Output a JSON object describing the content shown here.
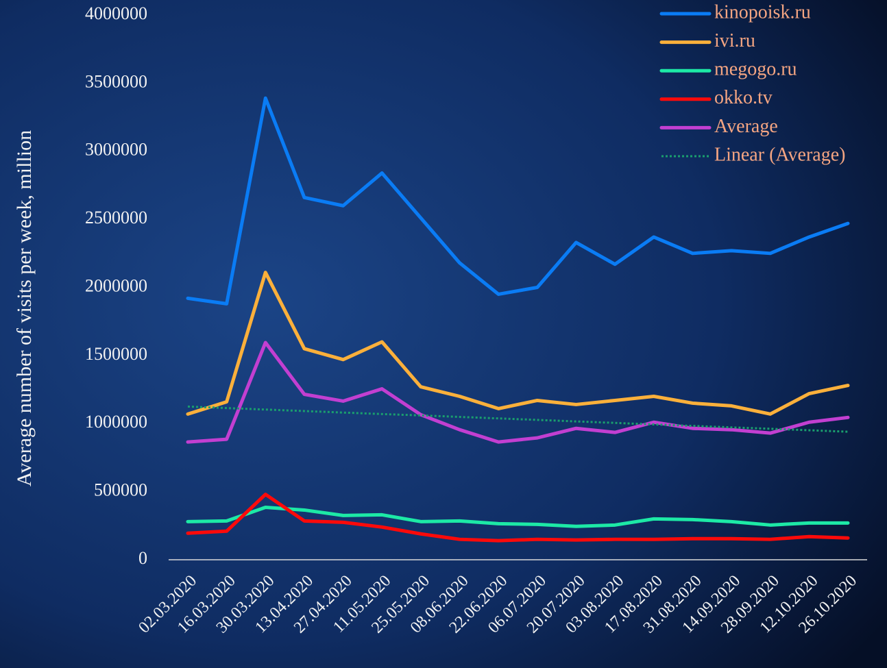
{
  "chart_data": {
    "type": "line",
    "y_label": "Average number of visits per week, million",
    "categories": [
      "02.03.2020",
      "16.03.2020",
      "30.03.2020",
      "13.04.2020",
      "27.04.2020",
      "11.05.2020",
      "25.05.2020",
      "08.06.2020",
      "22.06.2020",
      "06.07.2020",
      "20.07.2020",
      "03.08.2020",
      "17.08.2020",
      "31.08.2020",
      "14.09.2020",
      "28.09.2020",
      "12.10.2020",
      "26.10.2020"
    ],
    "series": [
      {
        "name": "kinopoisk.ru",
        "color": "#0a7cf5",
        "values": [
          1920000,
          1880000,
          3390000,
          2660000,
          2600000,
          2840000,
          2510000,
          2180000,
          1950000,
          2000000,
          2330000,
          2170000,
          2370000,
          2250000,
          2270000,
          2250000,
          2370000,
          2470000
        ]
      },
      {
        "name": "ivi.ru",
        "color": "#fbb03b",
        "values": [
          1070000,
          1160000,
          2110000,
          1550000,
          1470000,
          1600000,
          1270000,
          1200000,
          1110000,
          1170000,
          1140000,
          1170000,
          1200000,
          1150000,
          1130000,
          1070000,
          1220000,
          1280000
        ]
      },
      {
        "name": "megogo.ru",
        "color": "#1de9a6",
        "values": [
          280000,
          285000,
          385000,
          365000,
          325000,
          330000,
          280000,
          285000,
          265000,
          260000,
          245000,
          255000,
          300000,
          295000,
          280000,
          255000,
          270000,
          270000
        ]
      },
      {
        "name": "okko.tv",
        "color": "#ff0a0a",
        "values": [
          195000,
          210000,
          480000,
          285000,
          275000,
          240000,
          190000,
          150000,
          140000,
          150000,
          145000,
          150000,
          150000,
          155000,
          155000,
          150000,
          170000,
          160000
        ]
      },
      {
        "name": "Average",
        "color": "#c23fd1",
        "values": [
          865000,
          885000,
          1595000,
          1215000,
          1165000,
          1255000,
          1065000,
          955000,
          865000,
          895000,
          965000,
          935000,
          1010000,
          965000,
          955000,
          930000,
          1010000,
          1045000
        ]
      },
      {
        "name": "Linear (Average)",
        "color": "#1a9e6e",
        "line_style": "dotted",
        "values": [
          1125000,
          1114000,
          1103000,
          1092000,
          1081000,
          1070000,
          1060000,
          1049000,
          1038000,
          1027000,
          1016000,
          1005000,
          994000,
          983000,
          972000,
          962000,
          951000,
          940000
        ]
      }
    ],
    "ylim": [
      0,
      4000000
    ],
    "yticks": [
      0,
      500000,
      1000000,
      1500000,
      2000000,
      2500000,
      3000000,
      3500000,
      4000000
    ],
    "grid": false,
    "legend": "top-right"
  }
}
